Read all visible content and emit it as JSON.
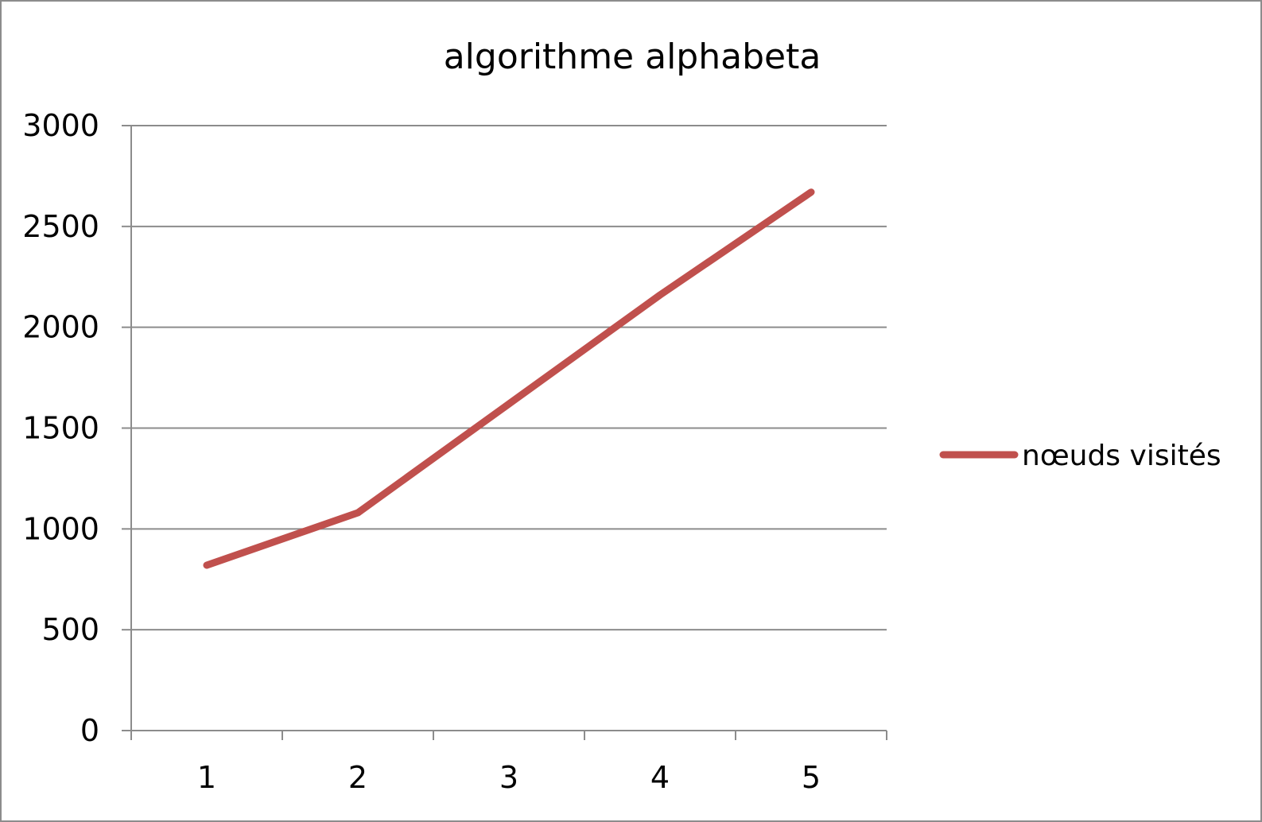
{
  "chart_data": {
    "type": "line",
    "title": "algorithme alphabeta",
    "xlabel": "",
    "ylabel": "",
    "categories": [
      "1",
      "2",
      "3",
      "4",
      "5"
    ],
    "series": [
      {
        "name": "nœuds visités",
        "values": [
          820,
          1080,
          1620,
          2160,
          2670
        ],
        "color": "#C0504D"
      }
    ],
    "ylim": [
      0,
      3000
    ],
    "yticks": [
      0,
      500,
      1000,
      1500,
      2000,
      2500,
      3000
    ],
    "ytick_labels": [
      "0",
      "500",
      "1000",
      "1500",
      "2000",
      "2500",
      "3000"
    ],
    "grid": true,
    "legend_position": "right",
    "colors": {
      "gridline": "#8c8c8c",
      "axis": "#8c8c8c",
      "frame": "#8c8c8c"
    }
  }
}
